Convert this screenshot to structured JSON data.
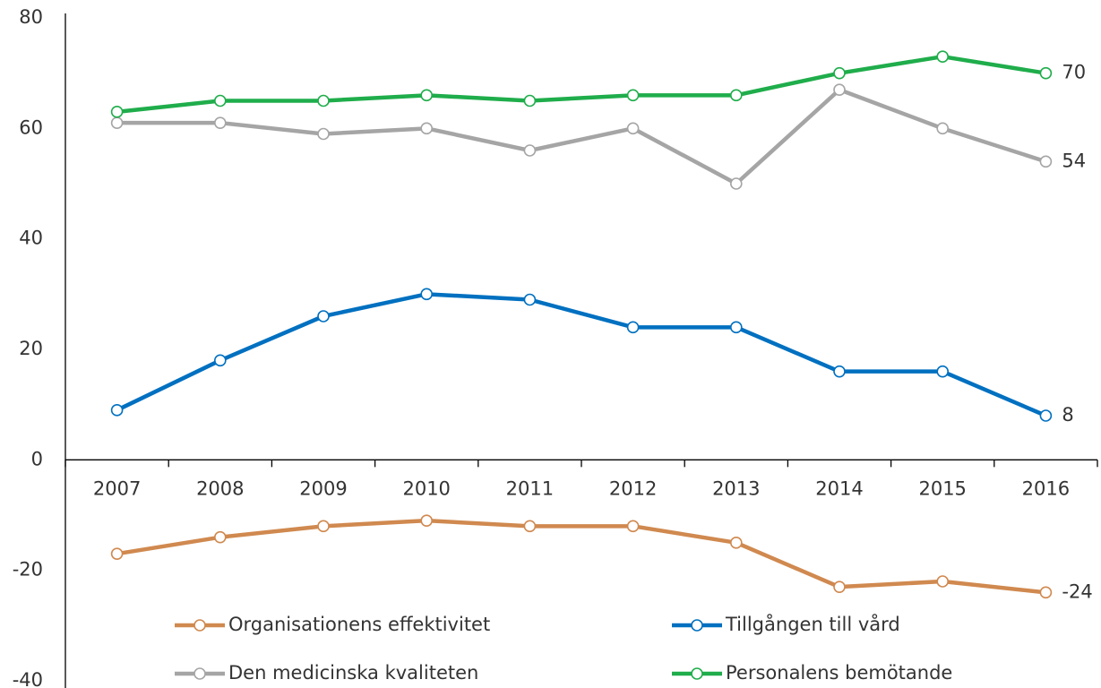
{
  "chart_data": {
    "type": "line",
    "categories": [
      "2007",
      "2008",
      "2009",
      "2010",
      "2011",
      "2012",
      "2013",
      "2014",
      "2015",
      "2016"
    ],
    "series": [
      {
        "name": "Organisationens effektivitet",
        "color": "#d0894f",
        "values": [
          -17,
          -14,
          -12,
          -11,
          -12,
          -12,
          -15,
          -23,
          -22,
          -24
        ]
      },
      {
        "name": "Tillgången till vård",
        "color": "#0070c0",
        "values": [
          9,
          18,
          26,
          30,
          29,
          24,
          24,
          16,
          16,
          8
        ]
      },
      {
        "name": "Den medicinska kvaliteten",
        "color": "#a5a5a5",
        "values": [
          61,
          61,
          59,
          60,
          56,
          60,
          50,
          67,
          60,
          54
        ]
      },
      {
        "name": "Personalens bemötande",
        "color": "#1fad4b",
        "values": [
          63,
          65,
          65,
          66,
          65,
          66,
          66,
          70,
          73,
          70
        ]
      }
    ],
    "ylim": [
      -40,
      80
    ],
    "yticks": [
      -40,
      -20,
      0,
      20,
      40,
      60,
      80
    ],
    "grid": false,
    "end_labels": true
  }
}
